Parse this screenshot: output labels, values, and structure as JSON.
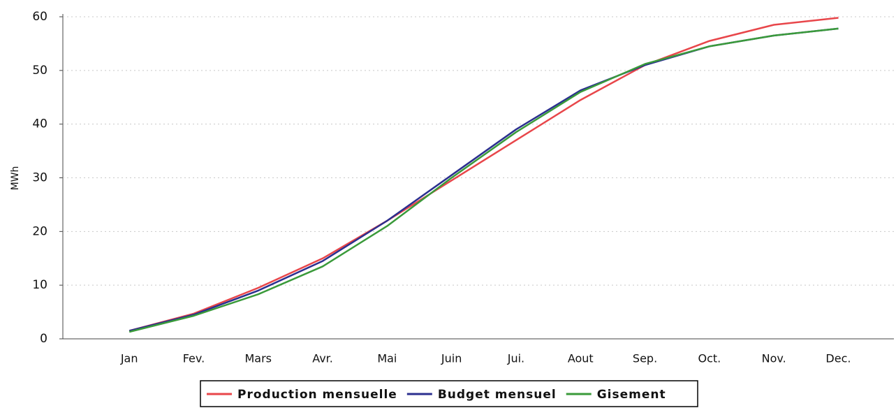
{
  "chart_data": {
    "type": "line",
    "ylabel": "MWh",
    "categories": [
      "Jan",
      "Fev.",
      "Mars",
      "Avr.",
      "Mai",
      "Juin",
      "Jui.",
      "Aout",
      "Sep.",
      "Oct.",
      "Nov.",
      "Dec."
    ],
    "series": [
      {
        "name": "Production mensuelle",
        "color": "#e8464a",
        "values": [
          1.5,
          4.7,
          9.5,
          15,
          22,
          29.5,
          37,
          44.5,
          51,
          55.5,
          58.5,
          59.8
        ]
      },
      {
        "name": "Budget mensuel",
        "color": "#2b2f8f",
        "values": [
          1.5,
          4.5,
          9,
          14.5,
          22,
          30.5,
          39,
          46.3,
          51,
          54.5,
          56.5,
          57.8
        ]
      },
      {
        "name": "Gisement",
        "color": "#3a9a3a",
        "values": [
          1.3,
          4.3,
          8.3,
          13.5,
          21,
          30,
          38.5,
          46,
          51.2,
          54.5,
          56.5,
          57.8
        ]
      }
    ],
    "ylim": [
      0,
      60
    ],
    "yticks": [
      0,
      10,
      20,
      30,
      40,
      50,
      60
    ],
    "grid": true
  }
}
